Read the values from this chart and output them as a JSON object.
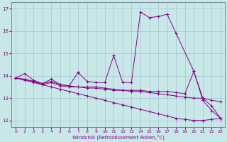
{
  "xlabel": "Windchill (Refroidissement éolien,°C)",
  "background_color": "#c8e8e8",
  "line_color": "#880088",
  "xlim": [
    -0.5,
    23.5
  ],
  "ylim": [
    11.7,
    17.3
  ],
  "yticks": [
    12,
    13,
    14,
    15,
    16,
    17
  ],
  "xticks": [
    0,
    1,
    2,
    3,
    4,
    5,
    6,
    7,
    8,
    9,
    10,
    11,
    12,
    13,
    14,
    15,
    16,
    17,
    18,
    19,
    20,
    21,
    22,
    23
  ],
  "series1_x": [
    0,
    1,
    2,
    3,
    4,
    5,
    6,
    7,
    7,
    8,
    9,
    10,
    11,
    12,
    13,
    14,
    15,
    16,
    17,
    18,
    20,
    21,
    22,
    23
  ],
  "series1_y": [
    13.9,
    14.1,
    13.8,
    13.65,
    13.85,
    13.6,
    13.55,
    14.15,
    14.15,
    13.75,
    13.7,
    13.7,
    14.9,
    13.7,
    13.7,
    16.85,
    16.6,
    16.65,
    16.75,
    15.9,
    14.2,
    12.9,
    12.45,
    12.1
  ],
  "series2_x": [
    0,
    1,
    2,
    3,
    4,
    5,
    6,
    7,
    8,
    9,
    10,
    11,
    12,
    13,
    14,
    15,
    16,
    17,
    18,
    19,
    20,
    21,
    22,
    23
  ],
  "series2_y": [
    13.9,
    13.85,
    13.75,
    13.65,
    13.75,
    13.6,
    13.55,
    13.5,
    13.5,
    13.5,
    13.45,
    13.4,
    13.35,
    13.3,
    13.3,
    13.25,
    13.2,
    13.15,
    13.1,
    13.05,
    13.0,
    13.0,
    12.9,
    12.85
  ],
  "series3_x": [
    0,
    1,
    2,
    3,
    4,
    5,
    6,
    7,
    8,
    9,
    10,
    11,
    12,
    13,
    14,
    15,
    16,
    17,
    18,
    19,
    20,
    21,
    22,
    23
  ],
  "series3_y": [
    13.9,
    13.8,
    13.7,
    13.6,
    13.5,
    13.4,
    13.3,
    13.2,
    13.1,
    13.0,
    12.9,
    12.8,
    12.7,
    12.6,
    12.5,
    12.4,
    12.3,
    12.2,
    12.1,
    12.05,
    12.0,
    12.0,
    12.05,
    12.1
  ],
  "series4_x": [
    0,
    2,
    3,
    4,
    5,
    6,
    7,
    8,
    9,
    10,
    11,
    12,
    13,
    14,
    15,
    16,
    17,
    18,
    19,
    20,
    21,
    22,
    23
  ],
  "series4_y": [
    13.9,
    13.75,
    13.6,
    13.7,
    13.55,
    13.5,
    13.5,
    13.45,
    13.45,
    13.4,
    13.35,
    13.35,
    13.35,
    13.35,
    13.3,
    13.3,
    13.3,
    13.25,
    13.2,
    14.2,
    13.0,
    12.65,
    12.1
  ]
}
